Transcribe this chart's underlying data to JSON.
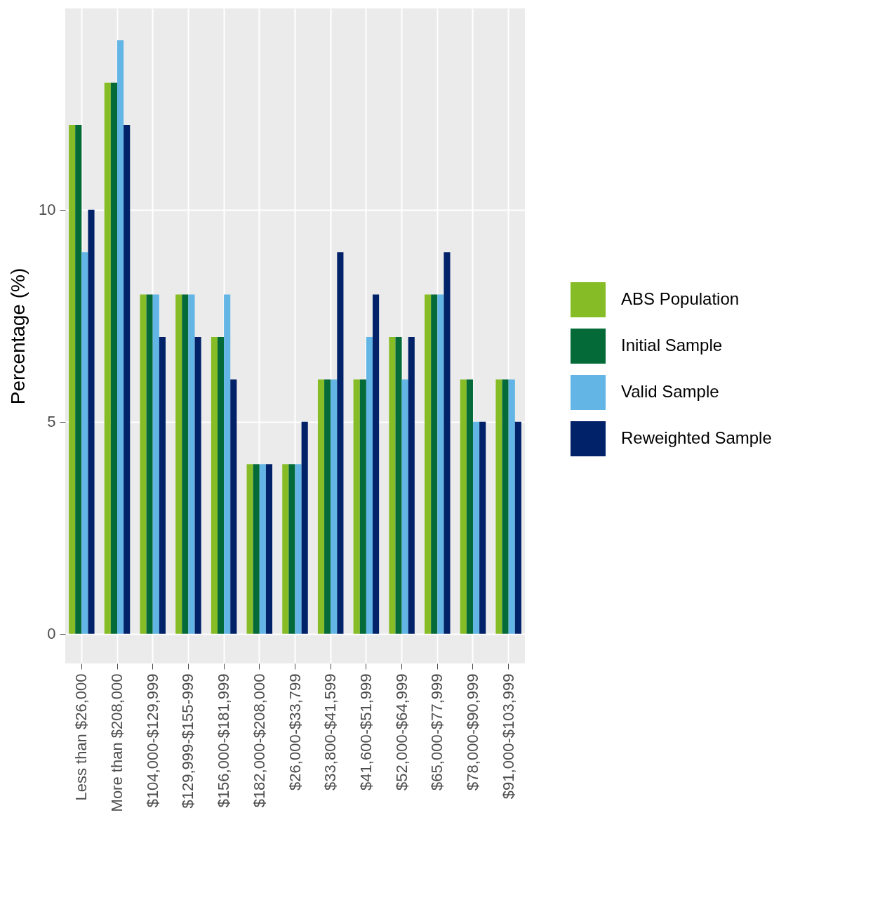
{
  "chart_data": {
    "type": "bar",
    "ylabel": "Percentage (%)",
    "categories": [
      "Less than $26,000",
      "More than $208,000",
      "$104,000-$129,999",
      "$129,999-$155-999",
      "$156,000-$181,999",
      "$182,000-$208,000",
      "$26,000-$33,799",
      "$33,800-$41,599",
      "$41,600-$51,999",
      "$52,000-$64,999",
      "$65,000-$77,999",
      "$78,000-$90,999",
      "$91,000-$103,999"
    ],
    "series": [
      {
        "name": "ABS Population",
        "color": "#86bc25",
        "values": [
          12,
          13,
          8,
          8,
          7,
          4,
          4,
          6,
          6,
          7,
          8,
          6,
          6
        ]
      },
      {
        "name": "Initial Sample",
        "color": "#046a38",
        "values": [
          12,
          13,
          8,
          8,
          7,
          4,
          4,
          6,
          6,
          7,
          8,
          6,
          6
        ]
      },
      {
        "name": "Valid Sample",
        "color": "#62b5e5",
        "values": [
          9,
          14,
          8,
          8,
          8,
          4,
          4,
          6,
          7,
          6,
          8,
          5,
          6
        ]
      },
      {
        "name": "Reweighted Sample",
        "color": "#012169",
        "values": [
          10,
          12,
          7,
          7,
          6,
          4,
          5,
          9,
          8,
          7,
          9,
          5,
          5
        ]
      }
    ],
    "ylim": [
      -0.7,
      14.75
    ],
    "yticks": [
      0,
      5,
      10
    ],
    "grid": true,
    "legend": "right"
  }
}
